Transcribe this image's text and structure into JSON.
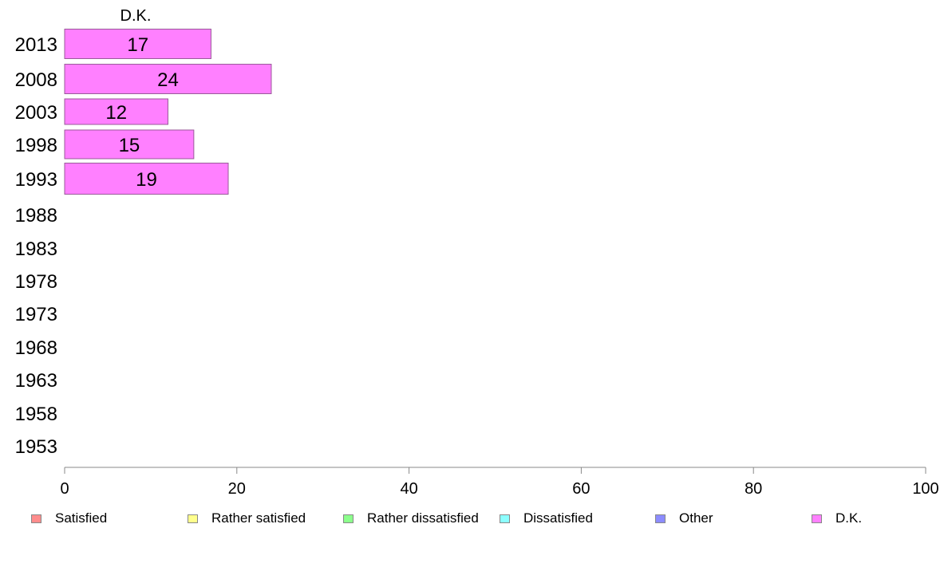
{
  "chart_data": {
    "type": "bar",
    "orientation": "horizontal",
    "stacked": true,
    "categories": [
      "2013",
      "2008",
      "2003",
      "1998",
      "1993",
      "1988",
      "1983",
      "1978",
      "1973",
      "1968",
      "1963",
      "1958",
      "1953"
    ],
    "series": [
      {
        "name": "Satisfied",
        "color": "#ff8c8c",
        "values": [
          null,
          null,
          null,
          null,
          null,
          null,
          null,
          null,
          null,
          null,
          null,
          null,
          null
        ]
      },
      {
        "name": "Rather satisfied",
        "color": "#ffff8c",
        "values": [
          null,
          null,
          null,
          null,
          null,
          null,
          null,
          null,
          null,
          null,
          null,
          null,
          null
        ]
      },
      {
        "name": "Rather dissatisfied",
        "color": "#8cff8c",
        "values": [
          null,
          null,
          null,
          null,
          null,
          null,
          null,
          null,
          null,
          null,
          null,
          null,
          null
        ]
      },
      {
        "name": "Dissatisfied",
        "color": "#8cffff",
        "values": [
          null,
          null,
          null,
          null,
          null,
          null,
          null,
          null,
          null,
          null,
          null,
          null,
          null
        ]
      },
      {
        "name": "Other",
        "color": "#8c8cff",
        "values": [
          null,
          null,
          null,
          null,
          null,
          null,
          null,
          null,
          null,
          null,
          null,
          null,
          null
        ]
      },
      {
        "name": "D.K.",
        "color": "#ff80ff",
        "values": [
          17,
          24,
          12,
          15,
          19,
          null,
          null,
          null,
          null,
          null,
          null,
          null,
          null
        ]
      }
    ],
    "series_title": "D.K.",
    "xlim": [
      0,
      100
    ],
    "xticks": [
      "0",
      "20",
      "40",
      "60",
      "80",
      "100"
    ],
    "title": "",
    "xlabel": "",
    "ylabel": "",
    "grid": false,
    "legend_position": "bottom"
  }
}
